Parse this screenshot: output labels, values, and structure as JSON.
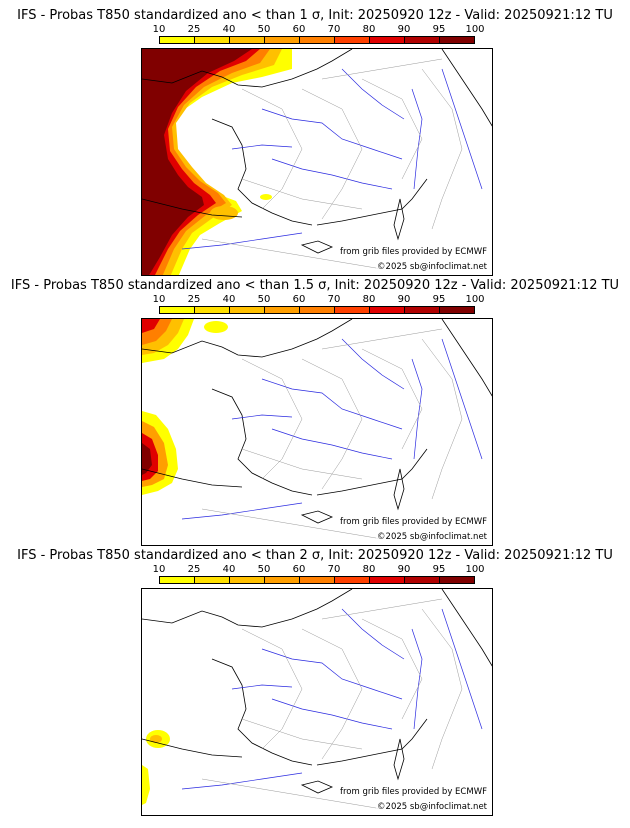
{
  "panels": [
    {
      "title": "IFS - Probas T850  standardized ano < than 1 σ, Init: 20250920 12z - Valid: 20250921:12 TU"
    },
    {
      "title": "IFS - Probas T850  standardized ano < than 1.5 σ, Init: 20250920 12z - Valid: 20250921:12 TU"
    },
    {
      "title": "IFS - Probas T850  standardized ano < than 2 σ, Init: 20250920 12z - Valid: 20250921:12 TU"
    }
  ],
  "colorbar": {
    "ticks": [
      "10",
      "25",
      "40",
      "50",
      "60",
      "70",
      "80",
      "90",
      "95",
      "100"
    ],
    "colors": [
      "#ffff00",
      "#ffe000",
      "#ffc000",
      "#ff9f00",
      "#ff7f00",
      "#ff4000",
      "#e00000",
      "#b00000",
      "#800000"
    ]
  },
  "credits": {
    "source": "from grib files provided by ECMWF",
    "copyright": "©2025 sb@infoclimat.net"
  },
  "map_colors": {
    "coast": "#000000",
    "rivers": "#2a2ae0",
    "borders": "#9a9a9a"
  }
}
